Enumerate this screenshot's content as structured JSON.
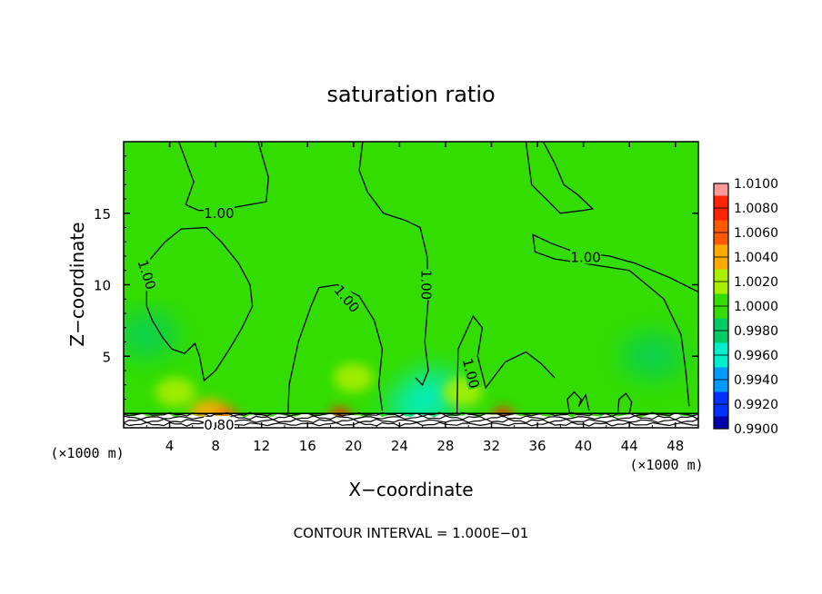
{
  "chart_data": {
    "type": "heatmap",
    "title": "saturation ratio",
    "xlabel": "X−coordinate",
    "ylabel": "Z−coordinate",
    "x_unit_left": "(×1000 m)",
    "x_unit_right": "(×1000 m)",
    "footer": "CONTOUR INTERVAL = 1.000E−01",
    "xlim": [
      0,
      50
    ],
    "ylim": [
      0,
      20
    ],
    "x_ticks": [
      4,
      8,
      12,
      16,
      20,
      24,
      28,
      32,
      36,
      40,
      44,
      48
    ],
    "x_tick_labels": [
      "4",
      "8",
      "12",
      "16",
      "20",
      "24",
      "28",
      "32",
      "36",
      "40",
      "44",
      "48"
    ],
    "y_ticks": [
      5,
      10,
      15
    ],
    "y_tick_labels": [
      "5",
      "10",
      "15"
    ],
    "background_color": "#33dd00",
    "colorbar": {
      "levels": [
        "1.0100",
        "1.0080",
        "1.0060",
        "1.0040",
        "1.0020",
        "1.0000",
        "0.9980",
        "0.9960",
        "0.9940",
        "0.9920",
        "0.9900"
      ],
      "colors": [
        "#ff9999",
        "#ff2200",
        "#ff5a00",
        "#ffaa00",
        "#aaee00",
        "#33dd00",
        "#00cc66",
        "#00eecc",
        "#0099ff",
        "#0033ff",
        "#0000aa",
        "#660099"
      ]
    },
    "contour_labels": [
      {
        "text": "1.00",
        "x": 8.3,
        "y": 15.0,
        "rot": 0
      },
      {
        "text": "1.00",
        "x": 2.0,
        "y": 10.7,
        "rot": 72
      },
      {
        "text": "1.00",
        "x": 19.4,
        "y": 9.0,
        "rot": 50
      },
      {
        "text": "1.00",
        "x": 26.3,
        "y": 10.0,
        "rot": 90
      },
      {
        "text": "1.00",
        "x": 40.2,
        "y": 11.9,
        "rot": 0
      },
      {
        "text": "1.00",
        "x": 30.2,
        "y": 3.8,
        "rot": 75
      },
      {
        "text": "0.80",
        "x": 8.3,
        "y": 0.2,
        "rot": 0
      }
    ],
    "contours": [
      [
        [
          4.8,
          20
        ],
        [
          6.1,
          17.2
        ],
        [
          5.4,
          15.6
        ],
        [
          6.5,
          15.2
        ],
        [
          8.3,
          15.2
        ],
        [
          9.6,
          15.4
        ],
        [
          12.4,
          15.8
        ],
        [
          12.6,
          17.5
        ],
        [
          11.7,
          20
        ]
      ],
      [
        [
          2.0,
          8.5
        ],
        [
          2.0,
          11.5
        ],
        [
          3.6,
          13.0
        ],
        [
          5.0,
          13.9
        ],
        [
          7.2,
          14.0
        ],
        [
          8.5,
          13.0
        ],
        [
          10.0,
          11.5
        ],
        [
          11.0,
          10.0
        ],
        [
          11.2,
          8.5
        ],
        [
          10.3,
          7.0
        ],
        [
          9.2,
          5.5
        ],
        [
          8.0,
          4.0
        ],
        [
          7.0,
          3.3
        ],
        [
          6.6,
          5.0
        ],
        [
          6.2,
          5.9
        ],
        [
          5.3,
          5.2
        ],
        [
          4.2,
          5.5
        ],
        [
          3.4,
          6.3
        ],
        [
          2.5,
          7.5
        ],
        [
          2.0,
          8.5
        ]
      ],
      [
        [
          14.3,
          1.0
        ],
        [
          14.4,
          3.0
        ],
        [
          15.2,
          6.0
        ],
        [
          16.3,
          8.5
        ],
        [
          17.0,
          9.8
        ],
        [
          18.6,
          10.0
        ],
        [
          20.5,
          9.2
        ],
        [
          21.8,
          7.5
        ],
        [
          22.5,
          5.5
        ],
        [
          22.2,
          3.0
        ],
        [
          22.5,
          1.2
        ]
      ],
      [
        [
          20.8,
          20
        ],
        [
          20.5,
          18.0
        ],
        [
          21.2,
          16.5
        ],
        [
          22.6,
          15.0
        ],
        [
          24.5,
          14.5
        ],
        [
          25.8,
          14.0
        ],
        [
          26.4,
          12.0
        ],
        [
          26.5,
          9.0
        ],
        [
          26.2,
          6.0
        ],
        [
          26.5,
          4.0
        ],
        [
          26.0,
          3.0
        ],
        [
          25.4,
          3.5
        ]
      ],
      [
        [
          29.0,
          1.0
        ],
        [
          29.1,
          5.5
        ],
        [
          30.4,
          7.8
        ],
        [
          31.2,
          7.0
        ],
        [
          30.8,
          5.0
        ],
        [
          31.5,
          2.8
        ],
        [
          33.2,
          4.6
        ],
        [
          35.0,
          5.3
        ],
        [
          36.3,
          4.5
        ],
        [
          37.5,
          3.5
        ]
      ],
      [
        [
          35.0,
          20
        ],
        [
          35.5,
          17.0
        ],
        [
          38.0,
          15.0
        ],
        [
          40.0,
          15.2
        ],
        [
          40.8,
          15.3
        ],
        [
          39.5,
          16.3
        ],
        [
          38.3,
          17.0
        ],
        [
          37.5,
          18.5
        ],
        [
          36.5,
          20
        ]
      ],
      [
        [
          50.0,
          9.5
        ],
        [
          47.5,
          10.5
        ],
        [
          44.5,
          11.5
        ],
        [
          42.3,
          12.0
        ],
        [
          39.2,
          12.3
        ],
        [
          37.2,
          12.9
        ],
        [
          35.6,
          13.5
        ],
        [
          35.8,
          12.3
        ],
        [
          37.5,
          11.8
        ],
        [
          40.0,
          11.5
        ],
        [
          44.0,
          11.0
        ],
        [
          47.0,
          9.0
        ],
        [
          48.5,
          6.5
        ],
        [
          48.9,
          4.0
        ],
        [
          49.2,
          1.5
        ]
      ],
      [
        [
          43.0,
          1.0
        ],
        [
          43.1,
          2.0
        ],
        [
          43.7,
          2.4
        ],
        [
          44.2,
          1.8
        ],
        [
          44.0,
          1.0
        ]
      ],
      [
        [
          38.8,
          1.0
        ],
        [
          38.6,
          2.0
        ],
        [
          39.2,
          2.5
        ],
        [
          39.8,
          2.0
        ],
        [
          39.6,
          1.5
        ],
        [
          40.2,
          2.3
        ],
        [
          40.5,
          1.2
        ]
      ]
    ],
    "hotspots": [
      {
        "x": 7.5,
        "y": 1.0,
        "value": 1.004
      },
      {
        "x": 9.0,
        "y": 0.9,
        "value": 1.006
      },
      {
        "x": 18.8,
        "y": 0.9,
        "value": 1.008
      },
      {
        "x": 33.0,
        "y": 0.9,
        "value": 1.008
      },
      {
        "x": 4.5,
        "y": 2.5,
        "value": 1.002
      },
      {
        "x": 29.5,
        "y": 2.5,
        "value": 1.002
      },
      {
        "x": 20.0,
        "y": 3.5,
        "value": 1.002
      }
    ],
    "coldspots": [
      {
        "x": 25.5,
        "y": 1.5,
        "value": 0.997
      },
      {
        "x": 46.0,
        "y": 5.0,
        "value": 0.998
      },
      {
        "x": 2.0,
        "y": 6.5,
        "value": 0.999
      },
      {
        "x": 27.0,
        "y": 2.5,
        "value": 0.997
      }
    ]
  }
}
